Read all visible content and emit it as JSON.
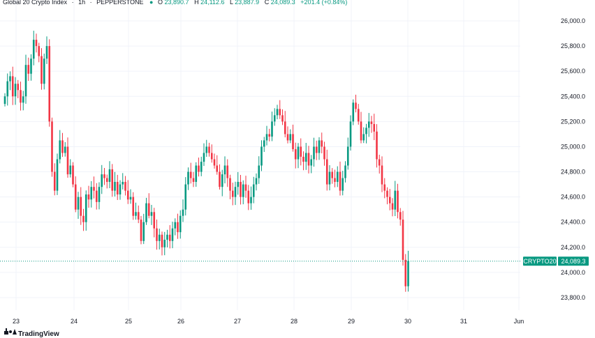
{
  "legend": {
    "symbol": "Global 20 Crypto Index",
    "interval": "1h",
    "exchange": "PEPPERSTONE",
    "o_label": "O",
    "o_value": "23,890.7",
    "h_label": "H",
    "h_value": "24,112.6",
    "l_label": "L",
    "l_value": "23,887.9",
    "c_label": "C",
    "c_value": "24,089.3",
    "change": "+201.4 (+0.84%)"
  },
  "price_tag": {
    "name": "CRYPTO20",
    "value": "24,089.3"
  },
  "brand": {
    "name": "TradingView"
  },
  "colors": {
    "up": "#089981",
    "down": "#f23645",
    "grid": "#f0f3fa",
    "text": "#131722"
  },
  "chart_data": {
    "type": "candlestick",
    "title": "Global 20 Crypto Index · 1h · PEPPERSTONE",
    "ylim": [
      23700,
      26150
    ],
    "yticks": [
      23800,
      24000,
      24200,
      24400,
      24600,
      24800,
      25000,
      25200,
      25400,
      25600,
      25800,
      26000
    ],
    "ytick_labels": [
      "23,800.0",
      "24,000.0",
      "24,200.0",
      "24,400.0",
      "24,600.0",
      "24,800.0",
      "25,000.0",
      "25,200.0",
      "25,400.0",
      "25,600.0",
      "25,800.0",
      "26,000.0"
    ],
    "xlim": [
      0,
      200
    ],
    "xticks": [
      2,
      26,
      50,
      74,
      98,
      122,
      146,
      170,
      194,
      218
    ],
    "xtick_labels": [
      "23",
      "24",
      "25",
      "26",
      "27",
      "28",
      "29",
      "30",
      "31",
      "Jun"
    ],
    "last_price": 24089.3,
    "closes": [
      25400,
      25520,
      25560,
      25400,
      25500,
      25450,
      25350,
      25400,
      25650,
      25580,
      25700,
      25850,
      25800,
      25720,
      25500,
      25700,
      25800,
      25200,
      24800,
      24650,
      24900,
      25050,
      24950,
      25000,
      24780,
      24850,
      24700,
      24500,
      24600,
      24450,
      24400,
      24620,
      24580,
      24680,
      24650,
      24560,
      24680,
      24780,
      24750,
      24720,
      24820,
      24650,
      24720,
      24620,
      24700,
      24720,
      24650,
      24580,
      24600,
      24450,
      24480,
      24420,
      24250,
      24400,
      24550,
      24450,
      24480,
      24350,
      24250,
      24300,
      24200,
      24260,
      24300,
      24250,
      24350,
      24400,
      24320,
      24450,
      24500,
      24700,
      24800,
      24750,
      24720,
      24850,
      24800,
      24880,
      24950,
      25000,
      24950,
      24900,
      24850,
      24800,
      24680,
      24780,
      24850,
      24750,
      24650,
      24600,
      24680,
      24720,
      24600,
      24700,
      24650,
      24550,
      24600,
      24700,
      24750,
      24850,
      25000,
      25050,
      25100,
      25080,
      25200,
      25250,
      25300,
      25250,
      25200,
      25100,
      25050,
      25100,
      24980,
      24900,
      25000,
      24920,
      24880,
      24950,
      24850,
      24900,
      25000,
      24950,
      25050,
      25000,
      24900,
      24700,
      24800,
      24750,
      24720,
      24800,
      24650,
      24750,
      24850,
      25000,
      25200,
      25350,
      25300,
      25200,
      25050,
      25100,
      25150,
      25200,
      25180,
      25120,
      24900,
      24850,
      24700,
      24650,
      24600,
      24550,
      24500,
      24650,
      24480,
      24420,
      24100,
      23890,
      24089.3
    ],
    "x_range": "May 23 – May 30, 1h candles"
  }
}
